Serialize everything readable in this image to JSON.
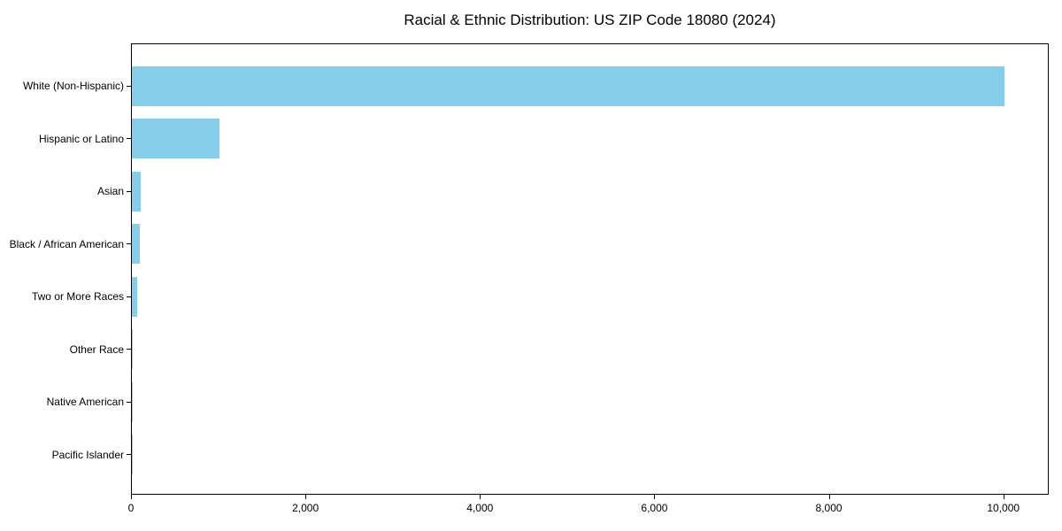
{
  "chart_data": {
    "type": "bar",
    "orientation": "horizontal",
    "title": "Racial & Ethnic Distribution: US ZIP Code 18080 (2024)",
    "categories": [
      "White (Non-Hispanic)",
      "Hispanic or Latino",
      "Asian",
      "Black / African American",
      "Two or More Races",
      "Other Race",
      "Native American",
      "Pacific Islander"
    ],
    "values": [
      10000,
      1000,
      105,
      95,
      65,
      12,
      5,
      2
    ],
    "xlabel": "",
    "ylabel": "",
    "xlim": [
      0,
      10500
    ],
    "xticks": [
      0,
      2000,
      4000,
      6000,
      8000,
      10000
    ],
    "xtick_labels": [
      "0",
      "2,000",
      "4,000",
      "6,000",
      "8,000",
      "10,000"
    ],
    "bar_color": "#87CEEB",
    "spine_color": "#000000",
    "grid": false,
    "legend_position": "none"
  }
}
